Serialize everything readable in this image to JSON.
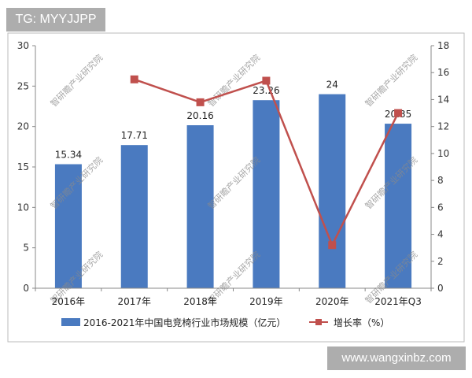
{
  "badges": {
    "top_left": "TG: MYYJJPP",
    "bottom_right": "www.wangxinbz.com"
  },
  "watermark": "智研瞻产业研究院",
  "colors": {
    "bar": "#4a7ac0",
    "line": "#c0504d",
    "axis": "#888888",
    "frame": "#bbbbbb"
  },
  "chart_data": {
    "type": "bar",
    "title": "",
    "xlabel": "",
    "ylabel": "",
    "categories": [
      "2016年",
      "2017年",
      "2018年",
      "2019年",
      "2020年",
      "2021年Q3"
    ],
    "ylim": [
      0,
      30
    ],
    "yticks": [
      0,
      5,
      10,
      15,
      20,
      25,
      30
    ],
    "y2lim": [
      0,
      18
    ],
    "y2ticks": [
      0,
      2,
      4,
      6,
      8,
      10,
      12,
      14,
      16,
      18
    ],
    "grid": false,
    "legend_position": "bottom",
    "series": [
      {
        "name": "2016-2021年中国电竞椅行业市场规模（亿元）",
        "type": "bar",
        "axis": "left",
        "values": [
          15.34,
          17.71,
          20.16,
          23.26,
          24,
          20.35
        ],
        "labels": [
          "15.34",
          "17.71",
          "20.16",
          "23.26",
          "24",
          "20.35"
        ]
      },
      {
        "name": "增长率（%）",
        "type": "line",
        "axis": "right",
        "values": [
          null,
          15.5,
          13.8,
          15.4,
          3.2,
          13.0
        ]
      }
    ]
  }
}
